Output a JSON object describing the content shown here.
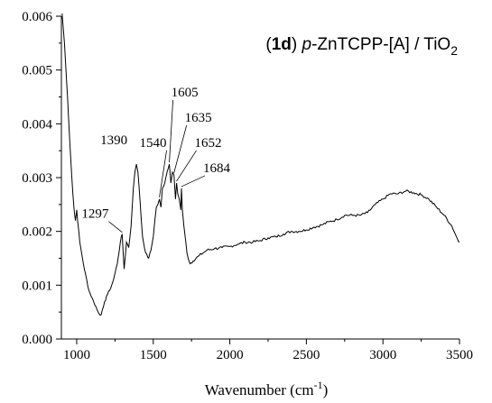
{
  "chart_data": {
    "type": "line",
    "title_parts": {
      "compound": "1d",
      "prefix": "p",
      "name": "-ZnTCPP-[A] / TiO",
      "subscript": "2"
    },
    "xlabel_main": "Wavenumber (cm",
    "xlabel_sup": "-1",
    "xlabel_close": ")",
    "ylabel": "",
    "xlim": [
      900,
      3500
    ],
    "ylim": [
      0,
      0.006
    ],
    "x_ticks": [
      1000,
      1500,
      2000,
      2500,
      3000,
      3500
    ],
    "x_tick_labels": [
      "1000",
      "1500",
      "2000",
      "2500",
      "3000",
      "3500"
    ],
    "y_ticks": [
      0,
      0.001,
      0.002,
      0.003,
      0.004,
      0.005,
      0.006
    ],
    "y_tick_labels": [
      "0.000",
      "0.001",
      "0.002",
      "0.003",
      "0.004",
      "0.005",
      "0.006"
    ],
    "grid": false,
    "annotations": [
      {
        "text": "1297",
        "x": 1297,
        "y": 0.00195
      },
      {
        "text": "1390",
        "x": 1390,
        "y": 0.00325
      },
      {
        "text": "1540",
        "x": 1540,
        "y": 0.0026
      },
      {
        "text": "1605",
        "x": 1605,
        "y": 0.00325
      },
      {
        "text": "1635",
        "x": 1635,
        "y": 0.00305
      },
      {
        "text": "1652",
        "x": 1652,
        "y": 0.0029
      },
      {
        "text": "1684",
        "x": 1684,
        "y": 0.0028
      }
    ],
    "series": [
      {
        "x": [
          905,
          920,
          940,
          960,
          975,
          985,
          992,
          1000,
          1020,
          1050,
          1080,
          1110,
          1140,
          1160,
          1175,
          1195,
          1215,
          1240,
          1265,
          1285,
          1297,
          1310,
          1325,
          1340,
          1355,
          1370,
          1380,
          1390,
          1400,
          1415,
          1430,
          1450,
          1470,
          1485,
          1500,
          1510,
          1520,
          1530,
          1540,
          1550,
          1560,
          1575,
          1590,
          1605,
          1615,
          1625,
          1635,
          1645,
          1652,
          1660,
          1670,
          1680,
          1684,
          1690,
          1700,
          1720,
          1740,
          1760,
          1800,
          1850,
          1900,
          1950,
          2000,
          2050,
          2100,
          2150,
          2200,
          2250,
          2300,
          2350,
          2400,
          2450,
          2500,
          2550,
          2600,
          2650,
          2700,
          2750,
          2800,
          2850,
          2900,
          2950,
          3000,
          3050,
          3100,
          3150,
          3200,
          3250,
          3300,
          3350,
          3400,
          3450,
          3480,
          3500
        ],
        "y": [
          0.00605,
          0.0055,
          0.0045,
          0.0034,
          0.0027,
          0.00235,
          0.0022,
          0.0024,
          0.0018,
          0.0013,
          0.0009,
          0.0007,
          0.0005,
          0.00045,
          0.0006,
          0.0008,
          0.0009,
          0.0011,
          0.0014,
          0.0018,
          0.00195,
          0.0013,
          0.0018,
          0.0017,
          0.0021,
          0.0028,
          0.0031,
          0.00325,
          0.0031,
          0.0025,
          0.0019,
          0.0016,
          0.0015,
          0.00165,
          0.0019,
          0.0022,
          0.00245,
          0.0025,
          0.0026,
          0.00245,
          0.0028,
          0.0029,
          0.0031,
          0.00325,
          0.0029,
          0.0031,
          0.00305,
          0.0026,
          0.0029,
          0.0027,
          0.0026,
          0.0024,
          0.0028,
          0.0024,
          0.0021,
          0.0016,
          0.0014,
          0.00145,
          0.00155,
          0.00165,
          0.00168,
          0.0017,
          0.00172,
          0.00176,
          0.0018,
          0.0018,
          0.00183,
          0.00188,
          0.0019,
          0.00195,
          0.002,
          0.002,
          0.00203,
          0.00208,
          0.00212,
          0.00218,
          0.00222,
          0.0023,
          0.0023,
          0.0023,
          0.00235,
          0.0025,
          0.0026,
          0.0027,
          0.0027,
          0.00275,
          0.00272,
          0.00268,
          0.0026,
          0.00245,
          0.0023,
          0.0021,
          0.0019,
          0.0018
        ]
      }
    ]
  }
}
